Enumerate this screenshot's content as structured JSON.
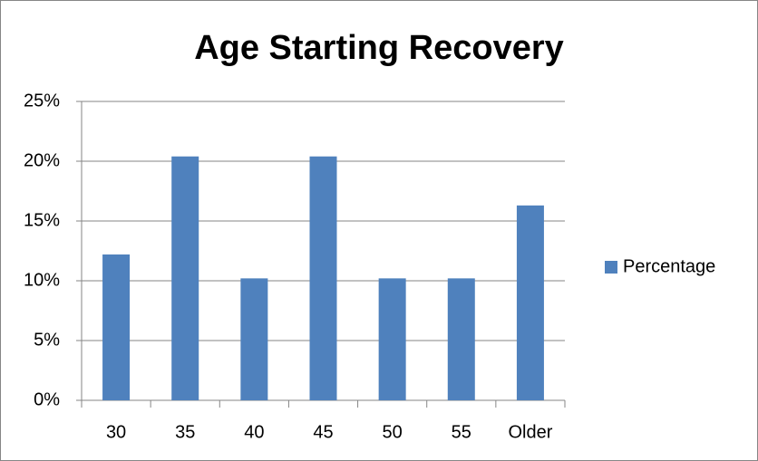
{
  "chart_data": {
    "type": "bar",
    "title": "Age Starting Recovery",
    "categories": [
      "30",
      "35",
      "40",
      "45",
      "50",
      "55",
      "Older"
    ],
    "series": [
      {
        "name": "Percentage",
        "color": "#4f81bd",
        "values": [
          12.2,
          20.4,
          10.2,
          20.4,
          10.2,
          10.2,
          16.3
        ]
      }
    ],
    "ylim": [
      0,
      25
    ],
    "yticks": [
      {
        "value": 0,
        "label": "0%"
      },
      {
        "value": 5,
        "label": "5%"
      },
      {
        "value": 10,
        "label": "10%"
      },
      {
        "value": 15,
        "label": "15%"
      },
      {
        "value": 20,
        "label": "20%"
      },
      {
        "value": 25,
        "label": "25%"
      }
    ],
    "grid": true,
    "legend": "right"
  }
}
